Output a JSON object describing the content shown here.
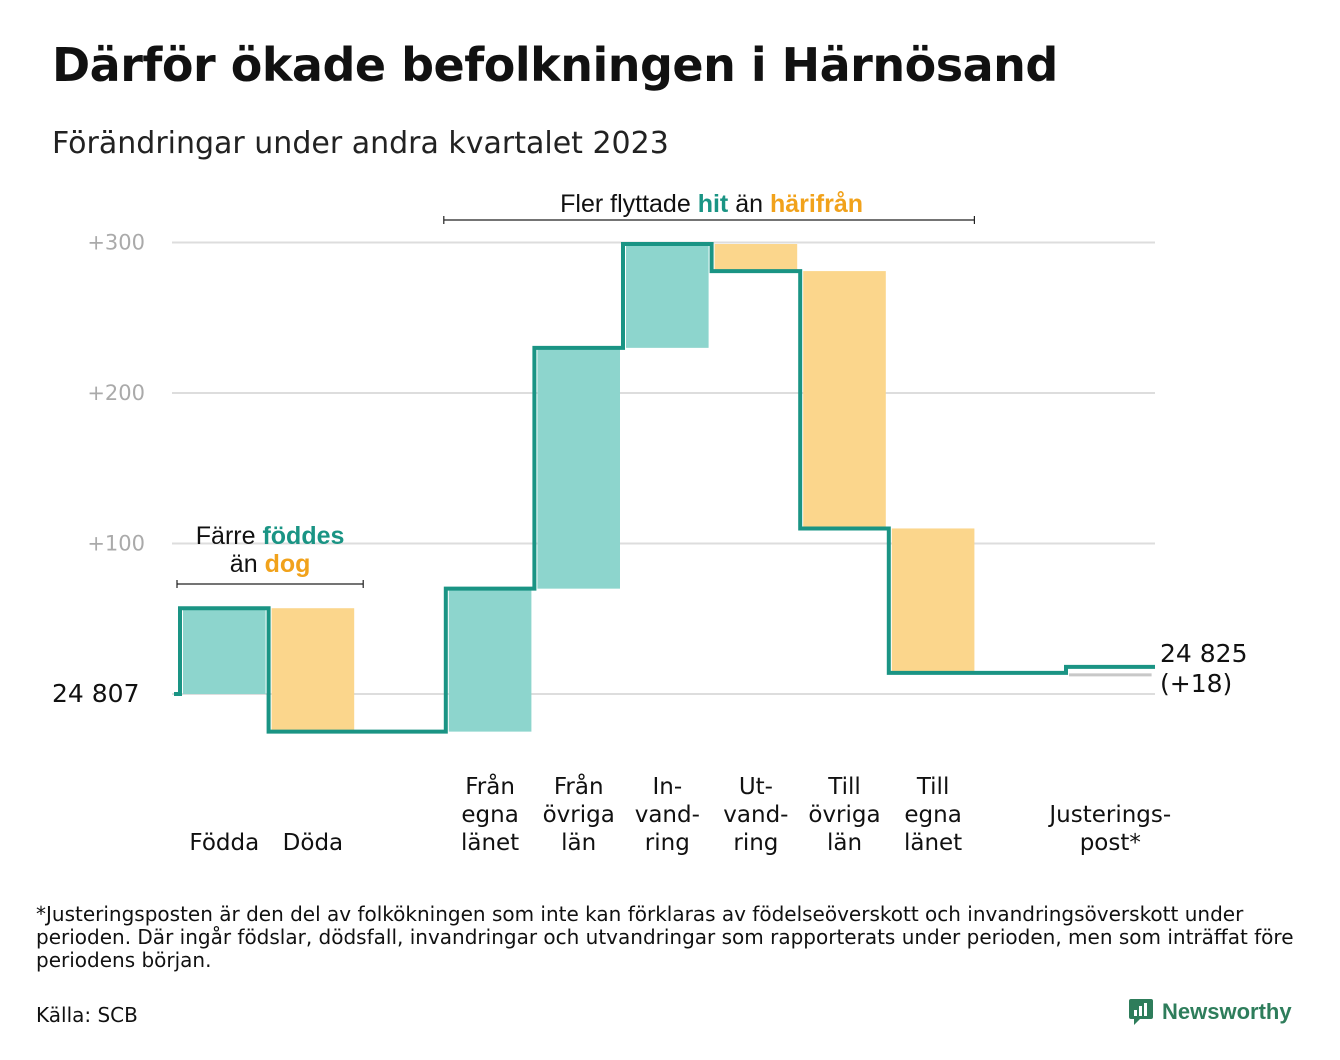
{
  "title": "Därför ökade befolkningen i Härnösand",
  "subtitle": "Förändringar under andra kvartalet 2023",
  "colors": {
    "increase": "#8dd5cd",
    "decrease": "#fbd68c",
    "line": "#1a9484",
    "gold": "#f1a21b",
    "grid": "#dddddd"
  },
  "chart_data": {
    "type": "waterfall",
    "start": {
      "value": 24807,
      "label": "24  807"
    },
    "end": {
      "value": 24825,
      "label": "24 825",
      "change_label": "(+18)"
    },
    "y_axis": {
      "ticks": [
        0,
        100,
        200,
        300
      ],
      "tick_labels": [
        "",
        "+100",
        "+200",
        "+300"
      ],
      "ylim": [
        -25,
        300
      ]
    },
    "steps": [
      {
        "label_lines": [
          "Födda"
        ],
        "delta": 57,
        "kind": "increase"
      },
      {
        "label_lines": [
          "Döda"
        ],
        "delta": -82,
        "kind": "decrease"
      },
      {
        "label_lines": [
          ""
        ],
        "delta": 0,
        "kind": "none"
      },
      {
        "label_lines": [
          "Från",
          "egna",
          "länet"
        ],
        "delta": 95,
        "kind": "increase"
      },
      {
        "label_lines": [
          "Från",
          "övriga",
          "län"
        ],
        "delta": 160,
        "kind": "increase"
      },
      {
        "label_lines": [
          "In-",
          "vand-",
          "ring"
        ],
        "delta": 69,
        "kind": "increase"
      },
      {
        "label_lines": [
          "Ut-",
          "vand-",
          "ring"
        ],
        "delta": -18,
        "kind": "decrease"
      },
      {
        "label_lines": [
          "Till",
          "övriga",
          "län"
        ],
        "delta": -171,
        "kind": "decrease"
      },
      {
        "label_lines": [
          "Till",
          "egna",
          "länet"
        ],
        "delta": -96,
        "kind": "decrease"
      },
      {
        "label_lines": [
          ""
        ],
        "delta": 0,
        "kind": "none"
      },
      {
        "label_lines": [
          "Justerings-",
          "post*"
        ],
        "delta": 4,
        "kind": "adjustment"
      }
    ],
    "annotations": [
      {
        "parts": [
          {
            "text": "Fler flyttade ",
            "style": "plain"
          },
          {
            "text": "hit",
            "style": "teal"
          },
          {
            "text": "  än ",
            "style": "plain"
          },
          {
            "text": "härifrån",
            "style": "gold"
          }
        ]
      },
      {
        "lines": [
          [
            {
              "text": "Färre ",
              "style": "plain"
            },
            {
              "text": "föddes",
              "style": "teal"
            }
          ],
          [
            {
              "text": "än ",
              "style": "plain"
            },
            {
              "text": "dog",
              "style": "gold"
            }
          ]
        ]
      }
    ]
  },
  "footnote": "*Justeringsposten är den del av folkökningen som inte kan förklaras av födelseöverskott och invandringsöverskott under perioden. Där ingår födslar, dödsfall, invandringar och utvandringar som rapporterats under perioden, men som inträffat före periodens början.",
  "source": "Källa: SCB",
  "logo": {
    "text": "Newsworthy",
    "icon": "newsworthy-chart-icon"
  }
}
